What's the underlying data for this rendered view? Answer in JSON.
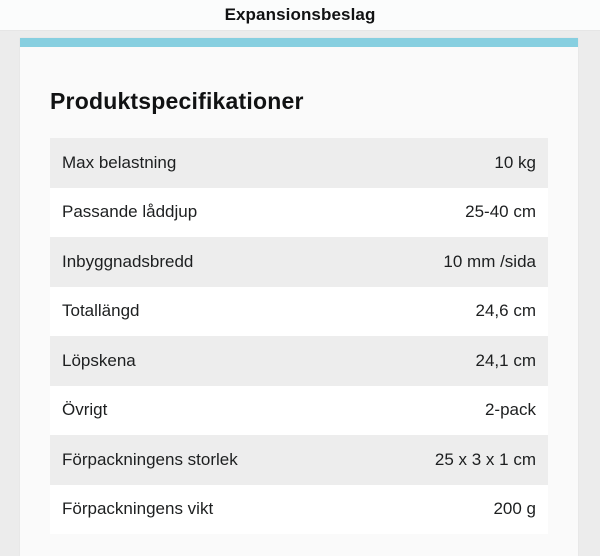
{
  "header": {
    "title": "Expansionsbeslag"
  },
  "card": {
    "title": "Produktspecifikationer",
    "specs": [
      {
        "label": "Max belastning",
        "value": "10 kg"
      },
      {
        "label": "Passande låddjup",
        "value": "25-40 cm"
      },
      {
        "label": "Inbyggnadsbredd",
        "value": "10 mm /sida"
      },
      {
        "label": "Totallängd",
        "value": "24,6 cm"
      },
      {
        "label": "Löpskena",
        "value": "24,1 cm"
      },
      {
        "label": "Övrigt",
        "value": "2-pack"
      },
      {
        "label": "Förpackningens storlek",
        "value": "25 x 3 x 1 cm"
      },
      {
        "label": "Förpackningens vikt",
        "value": "200 g"
      }
    ]
  },
  "colors": {
    "accent_teal": "#87cfe0",
    "page_background": "#ececec",
    "header_background": "#fbfcfc",
    "card_background": "#fafafa",
    "row_alt_background": "#ededed",
    "row_background": "#ffffff",
    "text": "#1d1f20"
  }
}
